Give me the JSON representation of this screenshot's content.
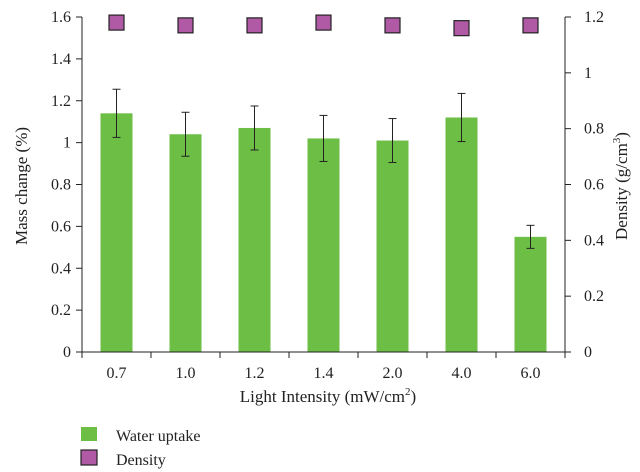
{
  "chart_data": {
    "type": "bar",
    "categories": [
      "0.7",
      "1.0",
      "1.2",
      "1.4",
      "2.0",
      "4.0",
      "6.0"
    ],
    "xlabel": "Light Intensity (mW/cm²)",
    "xlabel_main": "Light Intensity (mW/cm",
    "xlabel_sup": "2",
    "xlabel_end": ")",
    "ylabel": "Mass change (%)",
    "ylabel_right": "Density (g/cm³)",
    "ylabel_right_main": "Density (g/cm",
    "ylabel_right_sup": "3",
    "ylabel_right_end": ")",
    "ylim": [
      0,
      1.6
    ],
    "yticks": [
      "0",
      "0.2",
      "0.4",
      "0.6",
      "0.8",
      "1",
      "1.2",
      "1.4",
      "1.6"
    ],
    "ylim_right": [
      0,
      1.2
    ],
    "yticks_right": [
      "0",
      "0.2",
      "0.4",
      "0.6",
      "0.8",
      "1",
      "1.2"
    ],
    "grid": false,
    "legend_position": "bottom-left",
    "series": [
      {
        "name": "Water uptake",
        "kind": "bar",
        "axis": "left",
        "color": "#6dbe45",
        "values": [
          1.14,
          1.04,
          1.07,
          1.02,
          1.01,
          1.12,
          0.55
        ],
        "errors": [
          0.115,
          0.105,
          0.105,
          0.11,
          0.105,
          0.115,
          0.055
        ]
      },
      {
        "name": "Density",
        "kind": "scatter",
        "axis": "right",
        "color": "#b05aa6",
        "marker": "square",
        "values": [
          1.18,
          1.17,
          1.17,
          1.18,
          1.17,
          1.16,
          1.17
        ]
      }
    ]
  }
}
